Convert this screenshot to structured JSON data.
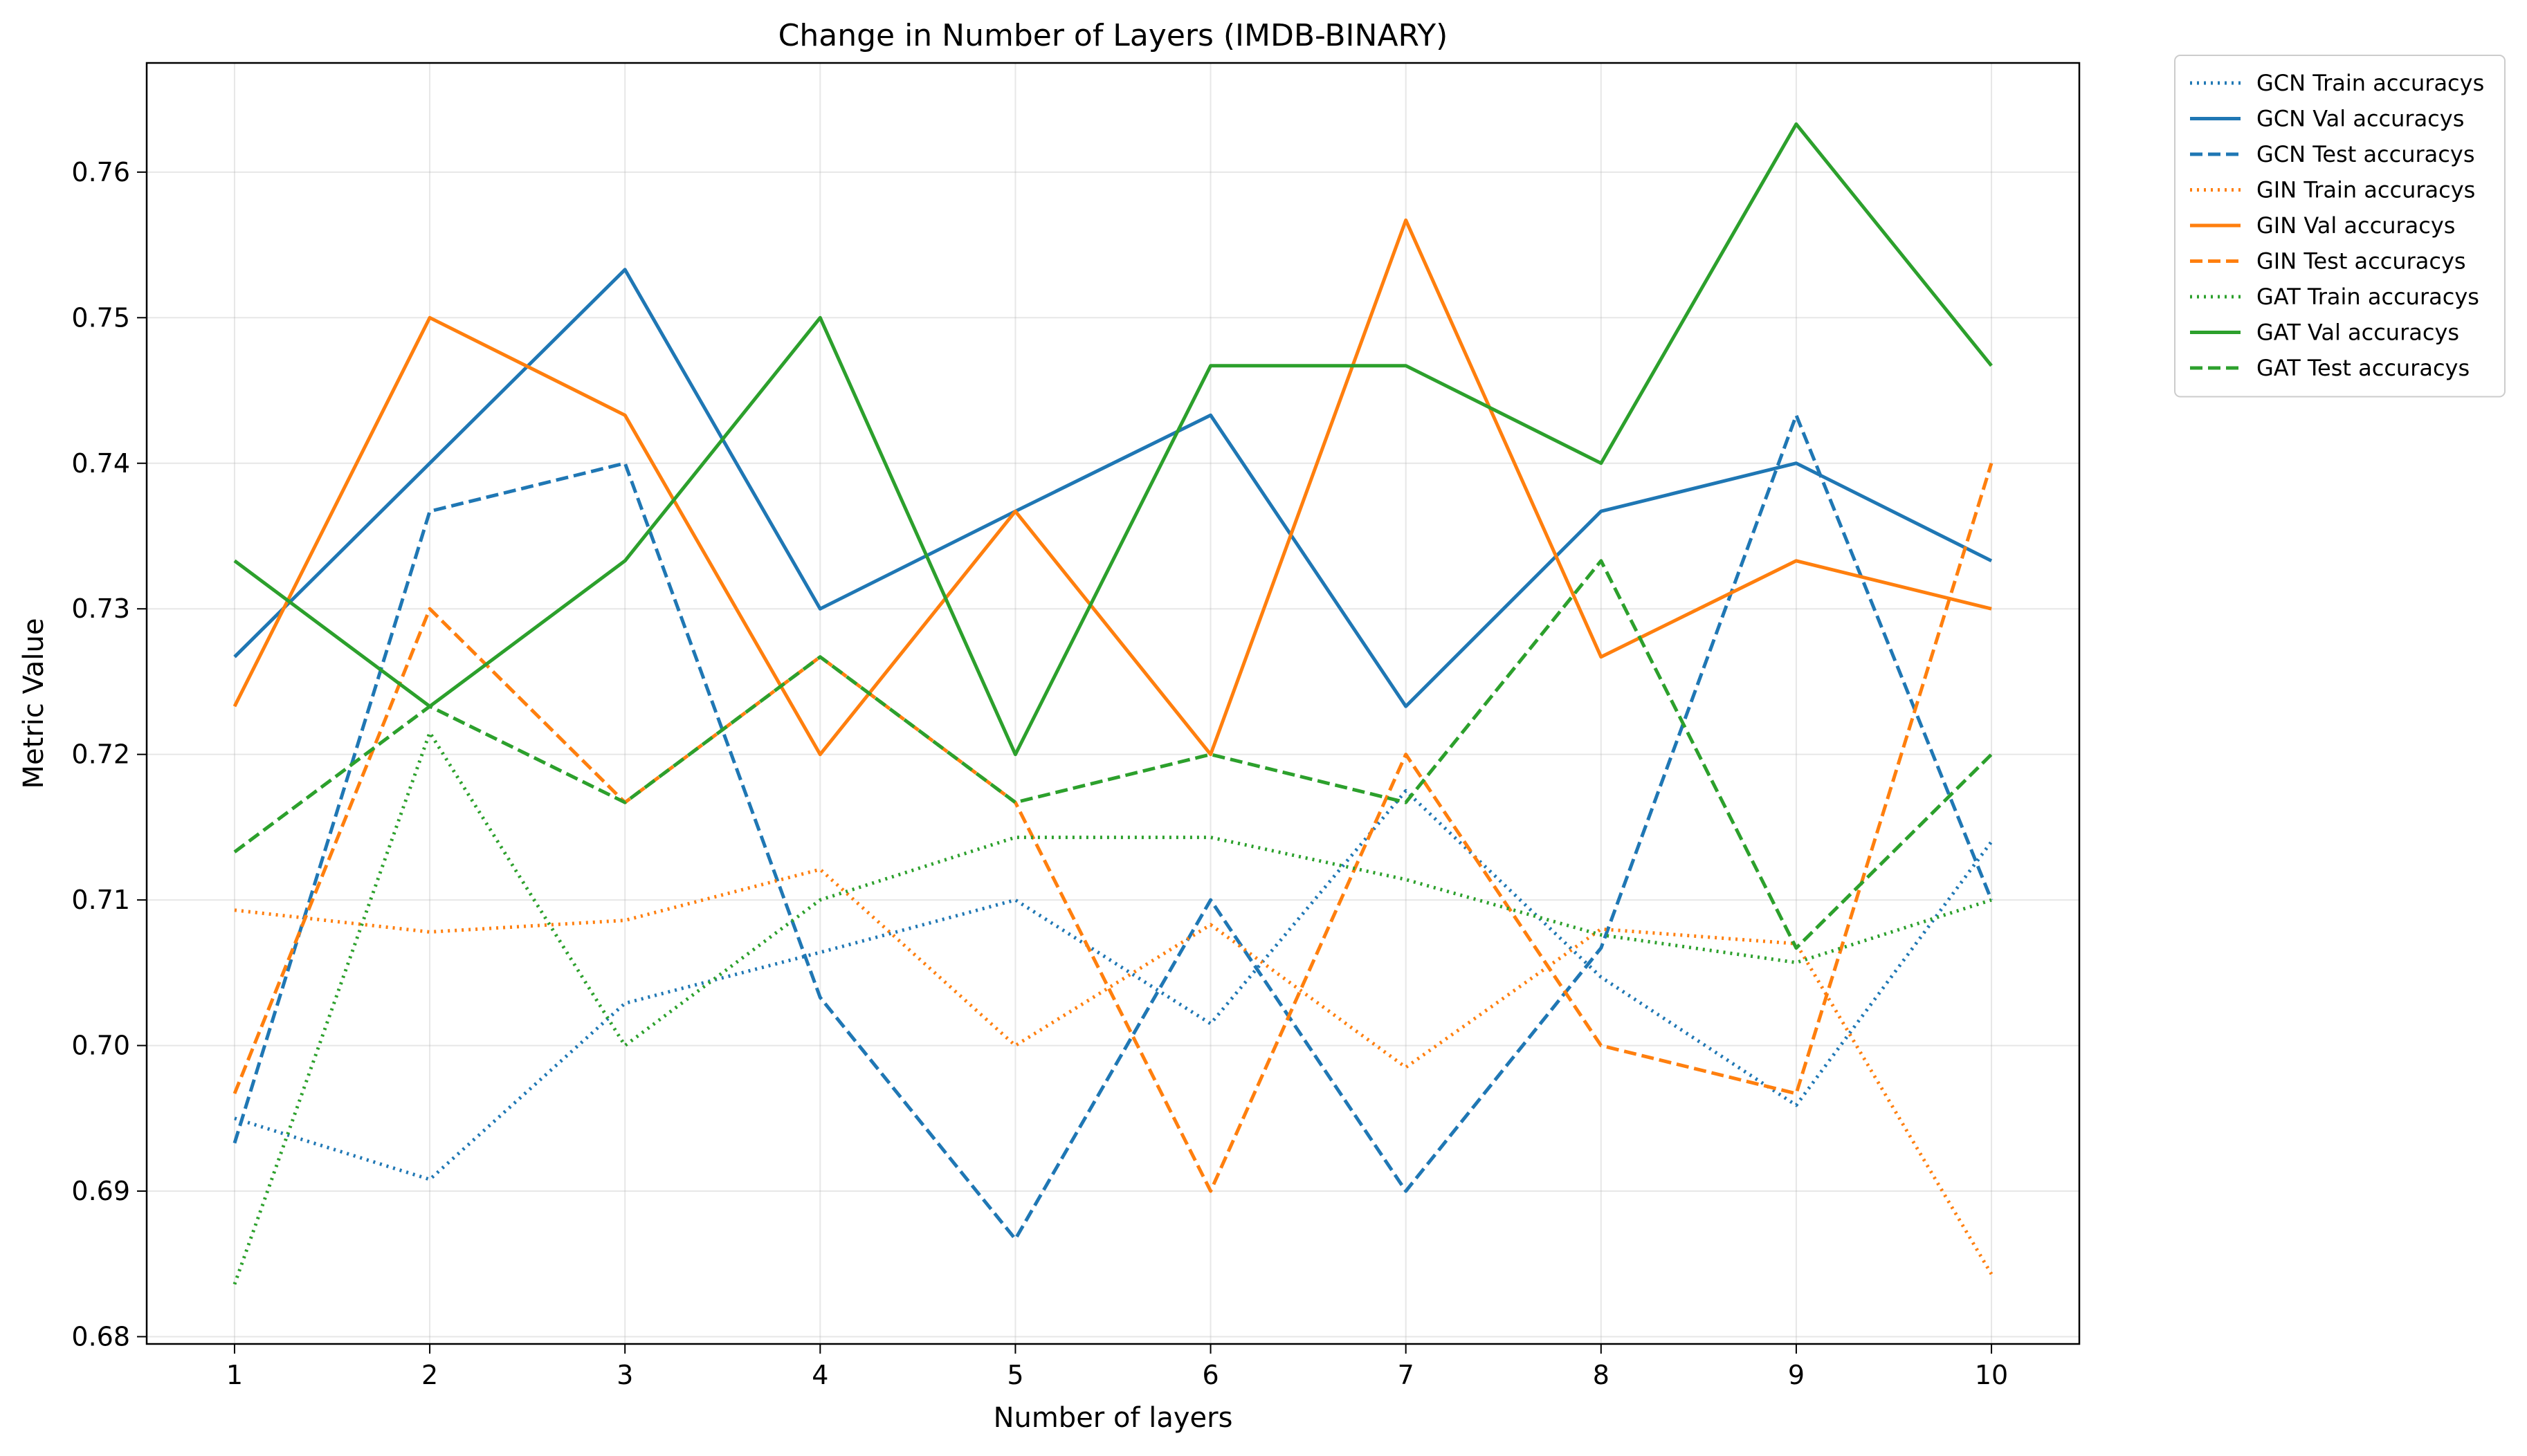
{
  "chart_data": {
    "type": "line",
    "title": "Change in Number of Layers (IMDB-BINARY)",
    "xlabel": "Number of layers",
    "ylabel": "Metric Value",
    "x": [
      1,
      2,
      3,
      4,
      5,
      6,
      7,
      8,
      9,
      10
    ],
    "xlim": [
      0.55,
      10.45
    ],
    "ylim": [
      0.6795,
      0.7675
    ],
    "yticks": [
      0.68,
      0.69,
      0.7,
      0.71,
      0.72,
      0.73,
      0.74,
      0.75,
      0.76
    ],
    "ytick_labels": [
      "0.68",
      "0.69",
      "0.70",
      "0.71",
      "0.72",
      "0.73",
      "0.74",
      "0.75",
      "0.76"
    ],
    "xtick_labels": [
      "1",
      "2",
      "3",
      "4",
      "5",
      "6",
      "7",
      "8",
      "9",
      "10"
    ],
    "grid": true,
    "legend_position": "outside-top-right",
    "series": [
      {
        "name": "GCN Train accuracys",
        "color": "#1f77b4",
        "style": "dotted",
        "values": [
          0.695,
          0.6908,
          0.7029,
          0.7064,
          0.71,
          0.7015,
          0.7175,
          0.7047,
          0.6959,
          0.714
        ]
      },
      {
        "name": "GCN Val accuracys",
        "color": "#1f77b4",
        "style": "solid",
        "values": [
          0.7267,
          0.74,
          0.7533,
          0.73,
          0.7367,
          0.7433,
          0.7233,
          0.7367,
          0.74,
          0.7333
        ]
      },
      {
        "name": "GCN Test accuracys",
        "color": "#1f77b4",
        "style": "dashed",
        "values": [
          0.6933,
          0.7367,
          0.74,
          0.7033,
          0.6867,
          0.71,
          0.69,
          0.7067,
          0.7433,
          0.71
        ]
      },
      {
        "name": "GIN Train accuracys",
        "color": "#ff7f0e",
        "style": "dotted",
        "values": [
          0.7093,
          0.7078,
          0.7086,
          0.7121,
          0.7,
          0.7083,
          0.6985,
          0.708,
          0.707,
          0.6843
        ]
      },
      {
        "name": "GIN Val accuracys",
        "color": "#ff7f0e",
        "style": "solid",
        "values": [
          0.7233,
          0.75,
          0.7433,
          0.72,
          0.7367,
          0.72,
          0.7567,
          0.7267,
          0.7333,
          0.73
        ]
      },
      {
        "name": "GIN Test accuracys",
        "color": "#ff7f0e",
        "style": "dashed",
        "values": [
          0.6967,
          0.73,
          0.7167,
          0.7267,
          0.7167,
          0.69,
          0.72,
          0.7,
          0.6967,
          0.74
        ]
      },
      {
        "name": "GAT Train accuracys",
        "color": "#2ca02c",
        "style": "dotted",
        "values": [
          0.6836,
          0.7215,
          0.7,
          0.71,
          0.7143,
          0.7143,
          0.7114,
          0.7076,
          0.7057,
          0.71
        ]
      },
      {
        "name": "GAT Val accuracys",
        "color": "#2ca02c",
        "style": "solid",
        "values": [
          0.7333,
          0.7233,
          0.7333,
          0.75,
          0.72,
          0.7467,
          0.7467,
          0.74,
          0.7633,
          0.7467
        ]
      },
      {
        "name": "GAT Test accuracys",
        "color": "#2ca02c",
        "style": "dashed",
        "values": [
          0.7133,
          0.7233,
          0.7167,
          0.7267,
          0.7167,
          0.72,
          0.7167,
          0.7333,
          0.7067,
          0.72
        ]
      }
    ]
  }
}
